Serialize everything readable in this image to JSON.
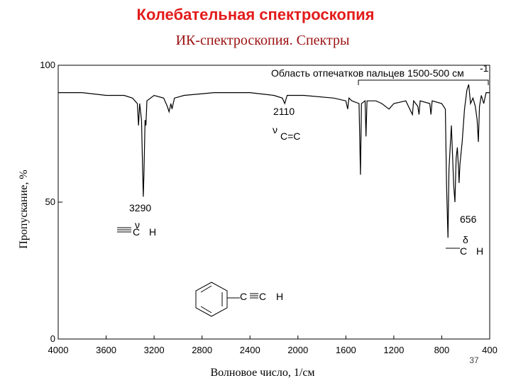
{
  "chart_data": {
    "type": "line",
    "title": "Колебательная спектроскопия",
    "subtitle": "ИК-спектроскопия. Спектры",
    "x_label": "Волновое число, 1/см",
    "y_label": "Пропускание, %",
    "page_number": "37",
    "color": "#000000",
    "xlim": [
      4000,
      400
    ],
    "ylim": [
      0,
      100
    ],
    "xticks": [
      4000,
      3600,
      3200,
      2800,
      2400,
      2000,
      1600,
      1200,
      800,
      400
    ],
    "yticks": [
      0,
      50,
      100
    ],
    "x": [
      4000,
      3800,
      3600,
      3450,
      3380,
      3340,
      3330,
      3320,
      3305,
      3295,
      3290,
      3285,
      3275,
      3268,
      3260,
      3200,
      3120,
      3090,
      3075,
      3060,
      3050,
      3030,
      2950,
      2700,
      2400,
      2200,
      2130,
      2110,
      2090,
      1950,
      1700,
      1600,
      1585,
      1575,
      1550,
      1490,
      1478,
      1470,
      1440,
      1432,
      1424,
      1350,
      1300,
      1240,
      1200,
      1100,
      1045,
      1035,
      1000,
      990,
      980,
      900,
      890,
      880,
      800,
      770,
      760,
      748,
      740,
      720,
      700,
      690,
      680,
      670,
      660,
      656,
      648,
      630,
      610,
      590,
      575,
      560,
      540,
      520,
      505,
      495,
      485,
      470,
      450,
      430,
      400
    ],
    "values": [
      90,
      90,
      89,
      89,
      88,
      86,
      78,
      86,
      80,
      60,
      52,
      60,
      80,
      78,
      87,
      89,
      88,
      85,
      83,
      86,
      84,
      88,
      89,
      90,
      90,
      89,
      88,
      86,
      89,
      89,
      88,
      87,
      84,
      88,
      87,
      86,
      60,
      86,
      87,
      74,
      87,
      87,
      86,
      84,
      86,
      87,
      82,
      87,
      85,
      82,
      87,
      86,
      82,
      87,
      86,
      84,
      56,
      37,
      62,
      78,
      56,
      50,
      66,
      70,
      62,
      57,
      64,
      72,
      84,
      91,
      93,
      86,
      88,
      85,
      80,
      72,
      85,
      89,
      86,
      90,
      90
    ],
    "annotations": {
      "fingerprint": "Область отпечатков пальцев 1500-500 см",
      "fingerprint_sup": "-1",
      "peak_2110": "2110",
      "nu_cc": "ν",
      "cc": "C=C",
      "peak_3290": "3290",
      "nu_ch": "ν",
      "ch_c": "C",
      "ch_h": "H",
      "peak_656": "656",
      "delta_ch": "δ",
      "dch_c": "C",
      "dch_h": "H",
      "struct_c1": "C",
      "struct_c2": "C",
      "struct_h": "H"
    }
  }
}
